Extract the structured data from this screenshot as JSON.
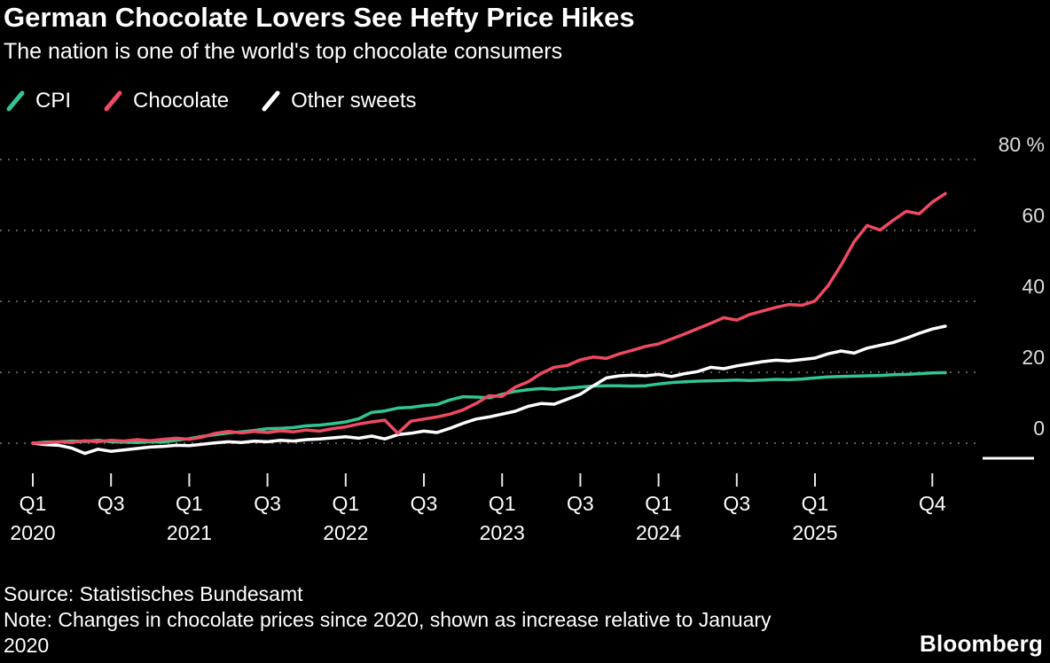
{
  "header": {
    "title": "German Chocolate Lovers See Hefty Price Hikes",
    "subtitle": "The nation is one of the world's top chocolate consumers"
  },
  "footer": {
    "source": "Source: Statistisches Bundesamt",
    "note": "Note: Changes in chocolate prices since 2020, shown as increase relative to January 2020",
    "brand": "Bloomberg"
  },
  "chart_data": {
    "type": "line",
    "title": "German Chocolate Lovers See Hefty Price Hikes",
    "subtitle": "The nation is one of the world's top chocolate consumers",
    "unit": "%",
    "frequency": "monthly",
    "x_start": "2020-01",
    "x_end": "2025-11",
    "ylim": [
      -5,
      80
    ],
    "yticks": [
      0,
      20,
      40,
      60,
      80
    ],
    "ytick_labels": [
      "0",
      "20",
      "40",
      "60",
      "80 %"
    ],
    "axis_side": "right",
    "grid": "dotted-horizontal",
    "legend_position": "top-left",
    "xticks": [
      {
        "index": 0,
        "label": "Q1",
        "year": "2020"
      },
      {
        "index": 6,
        "label": "Q3"
      },
      {
        "index": 12,
        "label": "Q1",
        "year": "2021"
      },
      {
        "index": 18,
        "label": "Q3"
      },
      {
        "index": 24,
        "label": "Q1",
        "year": "2022"
      },
      {
        "index": 30,
        "label": "Q3"
      },
      {
        "index": 36,
        "label": "Q1",
        "year": "2023"
      },
      {
        "index": 42,
        "label": "Q3"
      },
      {
        "index": 48,
        "label": "Q1",
        "year": "2024"
      },
      {
        "index": 54,
        "label": "Q3"
      },
      {
        "index": 60,
        "label": "Q1",
        "year": "2025"
      },
      {
        "index": 69,
        "label": "Q4"
      }
    ],
    "series": [
      {
        "name": "CPI",
        "color": "#33c58f",
        "values": [
          0.0,
          0.3,
          0.4,
          0.6,
          0.5,
          0.8,
          0.4,
          0.3,
          0.2,
          0.4,
          0.3,
          0.8,
          1.3,
          1.9,
          2.4,
          2.9,
          3.2,
          3.6,
          4.1,
          4.2,
          4.4,
          4.9,
          5.1,
          5.5,
          6.0,
          6.9,
          8.7,
          9.1,
          9.9,
          10.1,
          10.6,
          10.9,
          12.2,
          13.1,
          13.0,
          12.8,
          13.8,
          14.6,
          15.1,
          15.4,
          15.2,
          15.5,
          15.8,
          16.1,
          16.2,
          16.2,
          16.1,
          16.2,
          16.7,
          17.1,
          17.3,
          17.5,
          17.6,
          17.7,
          17.8,
          17.7,
          17.8,
          18.0,
          17.9,
          18.1,
          18.4,
          18.7,
          18.8,
          18.9,
          19.0,
          19.1,
          19.3,
          19.4,
          19.6,
          19.8,
          19.9
        ]
      },
      {
        "name": "Chocolate",
        "color": "#f04a63",
        "values": [
          0.0,
          0.1,
          0.4,
          0.2,
          0.7,
          0.4,
          0.8,
          0.6,
          1.0,
          0.7,
          1.1,
          1.4,
          1.1,
          1.7,
          2.8,
          3.3,
          2.9,
          3.3,
          3.0,
          3.5,
          3.2,
          3.7,
          3.4,
          4.1,
          4.6,
          5.4,
          6.0,
          6.5,
          2.8,
          6.2,
          6.8,
          7.4,
          8.2,
          9.4,
          11.2,
          13.4,
          13.2,
          15.8,
          17.3,
          19.7,
          21.4,
          21.9,
          23.5,
          24.3,
          23.9,
          25.2,
          26.2,
          27.3,
          28.0,
          29.4,
          30.8,
          32.3,
          33.8,
          35.4,
          34.7,
          36.3,
          37.3,
          38.3,
          39.1,
          38.9,
          40.1,
          44.4,
          50.2,
          56.8,
          61.4,
          60.1,
          62.9,
          65.4,
          64.7,
          68.0,
          70.4
        ]
      },
      {
        "name": "Other sweets",
        "color": "#ffffff",
        "values": [
          0.0,
          -0.4,
          -0.6,
          -1.4,
          -2.9,
          -1.7,
          -2.3,
          -1.9,
          -1.5,
          -1.1,
          -0.9,
          -0.6,
          -0.7,
          -0.3,
          0.1,
          0.4,
          0.2,
          0.6,
          0.4,
          0.8,
          0.6,
          1.0,
          1.2,
          1.5,
          1.8,
          1.4,
          2.0,
          1.2,
          2.4,
          2.8,
          3.4,
          3.0,
          4.2,
          5.6,
          6.8,
          7.4,
          8.2,
          9.0,
          10.4,
          11.2,
          11.0,
          12.4,
          13.8,
          16.2,
          18.4,
          19.0,
          19.2,
          19.0,
          19.4,
          18.8,
          19.6,
          20.2,
          21.4,
          21.0,
          21.8,
          22.4,
          23.0,
          23.4,
          23.2,
          23.6,
          24.0,
          25.2,
          26.0,
          25.4,
          26.8,
          27.6,
          28.4,
          29.6,
          31.0,
          32.2,
          33.0
        ]
      }
    ]
  }
}
